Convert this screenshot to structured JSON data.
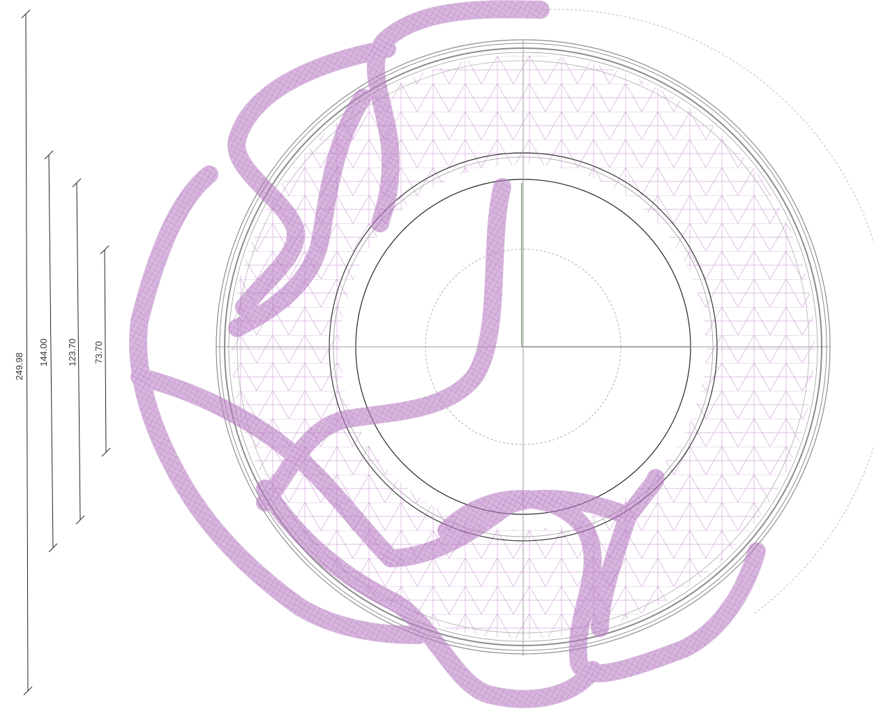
{
  "dimensions": [
    {
      "label": "249.98"
    },
    {
      "label": "144.00"
    },
    {
      "label": "123.70"
    },
    {
      "label": "73.70"
    }
  ],
  "colors": {
    "mesh": "#b87cc3",
    "mesh_light": "#d3a6da",
    "structure": "#8c8c8c",
    "structure_dark": "#333333",
    "axis": "#6aa67c",
    "dim_line": "#222222",
    "dotted": "#aaaaaa"
  }
}
